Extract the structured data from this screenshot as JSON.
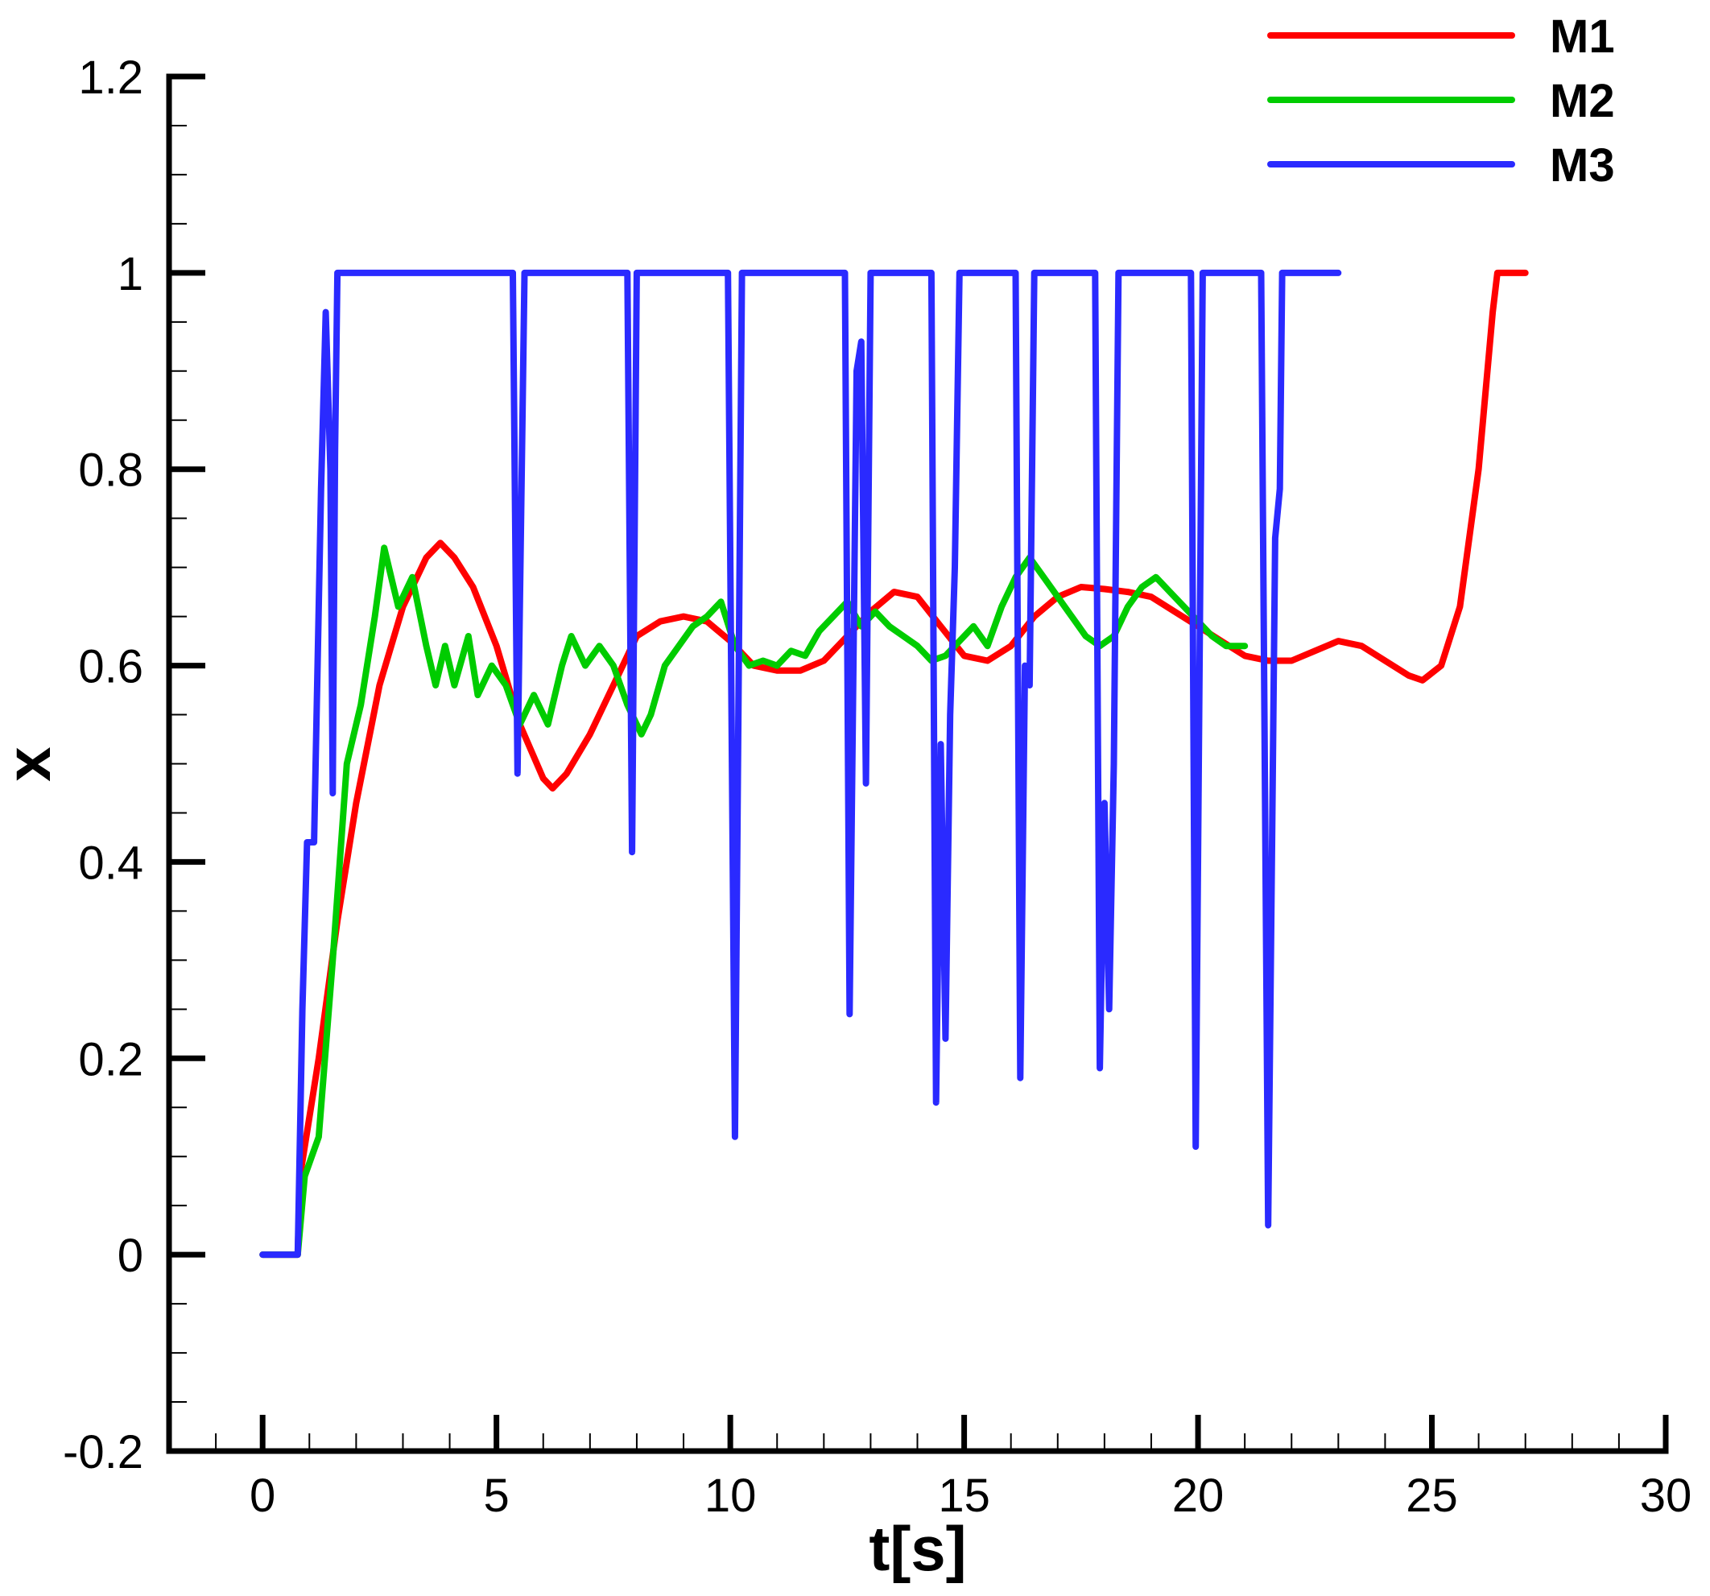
{
  "chart_data": {
    "type": "line",
    "xlabel": "t[s]",
    "ylabel": "x",
    "xlim": [
      -2,
      30
    ],
    "ylim": [
      -0.2,
      1.2
    ],
    "x_ticks": [
      0,
      5,
      10,
      15,
      20,
      25,
      30
    ],
    "x_tick_labels": [
      "0",
      "5",
      "10",
      "15",
      "20",
      "25",
      "30"
    ],
    "y_ticks": [
      -0.2,
      0,
      0.2,
      0.4,
      0.6,
      0.8,
      1,
      1.2
    ],
    "y_tick_labels": [
      "-0.2",
      "0",
      "0.2",
      "0.4",
      "0.6",
      "0.8",
      "1",
      "1.2"
    ],
    "x_minor_step": 1,
    "y_minor_step": 0.05,
    "grid": false,
    "legend_position": "top-right",
    "series": [
      {
        "name": "M1",
        "color": "#ff0000",
        "points": [
          [
            0,
            0
          ],
          [
            0.75,
            0
          ],
          [
            0.8,
            0.08
          ],
          [
            1.2,
            0.2
          ],
          [
            1.6,
            0.34
          ],
          [
            2.0,
            0.46
          ],
          [
            2.5,
            0.58
          ],
          [
            3.0,
            0.66
          ],
          [
            3.5,
            0.71
          ],
          [
            3.8,
            0.725
          ],
          [
            4.1,
            0.71
          ],
          [
            4.5,
            0.68
          ],
          [
            5.0,
            0.62
          ],
          [
            5.5,
            0.54
          ],
          [
            6.0,
            0.485
          ],
          [
            6.2,
            0.475
          ],
          [
            6.5,
            0.49
          ],
          [
            7.0,
            0.53
          ],
          [
            7.5,
            0.58
          ],
          [
            8.0,
            0.63
          ],
          [
            8.5,
            0.645
          ],
          [
            9.0,
            0.65
          ],
          [
            9.5,
            0.645
          ],
          [
            10.0,
            0.625
          ],
          [
            10.5,
            0.6
          ],
          [
            11.0,
            0.595
          ],
          [
            11.5,
            0.595
          ],
          [
            12.0,
            0.605
          ],
          [
            12.5,
            0.63
          ],
          [
            13.0,
            0.655
          ],
          [
            13.5,
            0.675
          ],
          [
            14.0,
            0.67
          ],
          [
            14.5,
            0.64
          ],
          [
            15.0,
            0.61
          ],
          [
            15.5,
            0.605
          ],
          [
            16.0,
            0.62
          ],
          [
            16.5,
            0.65
          ],
          [
            17.0,
            0.67
          ],
          [
            17.5,
            0.68
          ],
          [
            18.0,
            0.678
          ],
          [
            18.5,
            0.675
          ],
          [
            19.0,
            0.67
          ],
          [
            19.5,
            0.655
          ],
          [
            20.0,
            0.64
          ],
          [
            20.5,
            0.625
          ],
          [
            21.0,
            0.61
          ],
          [
            21.5,
            0.605
          ],
          [
            22.0,
            0.605
          ],
          [
            22.5,
            0.615
          ],
          [
            23.0,
            0.625
          ],
          [
            23.5,
            0.62
          ],
          [
            24.0,
            0.605
          ],
          [
            24.5,
            0.59
          ],
          [
            24.8,
            0.585
          ],
          [
            25.2,
            0.6
          ],
          [
            25.6,
            0.66
          ],
          [
            26.0,
            0.8
          ],
          [
            26.3,
            0.96
          ],
          [
            26.4,
            1.0
          ],
          [
            27.0,
            1.0
          ]
        ]
      },
      {
        "name": "M2",
        "color": "#00cc00",
        "points": [
          [
            0,
            0
          ],
          [
            0.75,
            0
          ],
          [
            0.9,
            0.08
          ],
          [
            1.2,
            0.12
          ],
          [
            1.5,
            0.3
          ],
          [
            1.8,
            0.5
          ],
          [
            2.1,
            0.56
          ],
          [
            2.4,
            0.65
          ],
          [
            2.6,
            0.72
          ],
          [
            2.9,
            0.66
          ],
          [
            3.2,
            0.69
          ],
          [
            3.5,
            0.62
          ],
          [
            3.7,
            0.58
          ],
          [
            3.9,
            0.62
          ],
          [
            4.1,
            0.58
          ],
          [
            4.4,
            0.63
          ],
          [
            4.6,
            0.57
          ],
          [
            4.9,
            0.6
          ],
          [
            5.2,
            0.58
          ],
          [
            5.5,
            0.54
          ],
          [
            5.8,
            0.57
          ],
          [
            6.1,
            0.54
          ],
          [
            6.4,
            0.6
          ],
          [
            6.6,
            0.63
          ],
          [
            6.9,
            0.6
          ],
          [
            7.2,
            0.62
          ],
          [
            7.5,
            0.6
          ],
          [
            7.8,
            0.56
          ],
          [
            8.1,
            0.53
          ],
          [
            8.3,
            0.55
          ],
          [
            8.6,
            0.6
          ],
          [
            8.9,
            0.62
          ],
          [
            9.2,
            0.64
          ],
          [
            9.5,
            0.65
          ],
          [
            9.8,
            0.665
          ],
          [
            10.1,
            0.62
          ],
          [
            10.4,
            0.6
          ],
          [
            10.7,
            0.605
          ],
          [
            11.0,
            0.6
          ],
          [
            11.3,
            0.615
          ],
          [
            11.6,
            0.61
          ],
          [
            11.9,
            0.635
          ],
          [
            12.2,
            0.65
          ],
          [
            12.5,
            0.665
          ],
          [
            12.8,
            0.64
          ],
          [
            13.1,
            0.655
          ],
          [
            13.4,
            0.64
          ],
          [
            13.7,
            0.63
          ],
          [
            14.0,
            0.62
          ],
          [
            14.3,
            0.605
          ],
          [
            14.6,
            0.61
          ],
          [
            14.9,
            0.625
          ],
          [
            15.2,
            0.64
          ],
          [
            15.5,
            0.62
          ],
          [
            15.8,
            0.66
          ],
          [
            16.1,
            0.69
          ],
          [
            16.4,
            0.71
          ],
          [
            16.7,
            0.69
          ],
          [
            17.0,
            0.67
          ],
          [
            17.3,
            0.65
          ],
          [
            17.6,
            0.63
          ],
          [
            17.9,
            0.62
          ],
          [
            18.2,
            0.63
          ],
          [
            18.5,
            0.66
          ],
          [
            18.8,
            0.68
          ],
          [
            19.1,
            0.69
          ],
          [
            19.4,
            0.675
          ],
          [
            19.7,
            0.66
          ],
          [
            20.0,
            0.645
          ],
          [
            20.3,
            0.63
          ],
          [
            20.6,
            0.62
          ],
          [
            21.0,
            0.62
          ]
        ]
      },
      {
        "name": "M3",
        "color": "#2a2aff",
        "points": [
          [
            0,
            0
          ],
          [
            0.75,
            0
          ],
          [
            0.85,
            0.25
          ],
          [
            0.95,
            0.42
          ],
          [
            1.1,
            0.42
          ],
          [
            1.25,
            0.78
          ],
          [
            1.35,
            0.96
          ],
          [
            1.45,
            0.8
          ],
          [
            1.5,
            0.47
          ],
          [
            1.55,
            0.82
          ],
          [
            1.6,
            1.0
          ],
          [
            5.35,
            1.0
          ],
          [
            5.45,
            0.49
          ],
          [
            5.6,
            1.0
          ],
          [
            7.8,
            1.0
          ],
          [
            7.9,
            0.41
          ],
          [
            8.0,
            1.0
          ],
          [
            9.95,
            1.0
          ],
          [
            10.1,
            0.12
          ],
          [
            10.25,
            1.0
          ],
          [
            12.45,
            1.0
          ],
          [
            12.55,
            0.245
          ],
          [
            12.7,
            0.9
          ],
          [
            12.8,
            0.93
          ],
          [
            12.9,
            0.48
          ],
          [
            13.0,
            1.0
          ],
          [
            14.3,
            1.0
          ],
          [
            14.4,
            0.155
          ],
          [
            14.5,
            0.52
          ],
          [
            14.6,
            0.22
          ],
          [
            14.7,
            0.55
          ],
          [
            14.8,
            0.7
          ],
          [
            14.9,
            1.0
          ],
          [
            16.1,
            1.0
          ],
          [
            16.2,
            0.18
          ],
          [
            16.3,
            0.6
          ],
          [
            16.4,
            0.58
          ],
          [
            16.5,
            1.0
          ],
          [
            17.8,
            1.0
          ],
          [
            17.9,
            0.19
          ],
          [
            18.0,
            0.46
          ],
          [
            18.1,
            0.25
          ],
          [
            18.2,
            0.5
          ],
          [
            18.3,
            1.0
          ],
          [
            19.85,
            1.0
          ],
          [
            19.95,
            0.11
          ],
          [
            20.1,
            1.0
          ],
          [
            21.35,
            1.0
          ],
          [
            21.5,
            0.03
          ],
          [
            21.65,
            0.73
          ],
          [
            21.75,
            0.78
          ],
          [
            21.8,
            1.0
          ],
          [
            23.0,
            1.0
          ]
        ]
      }
    ]
  }
}
